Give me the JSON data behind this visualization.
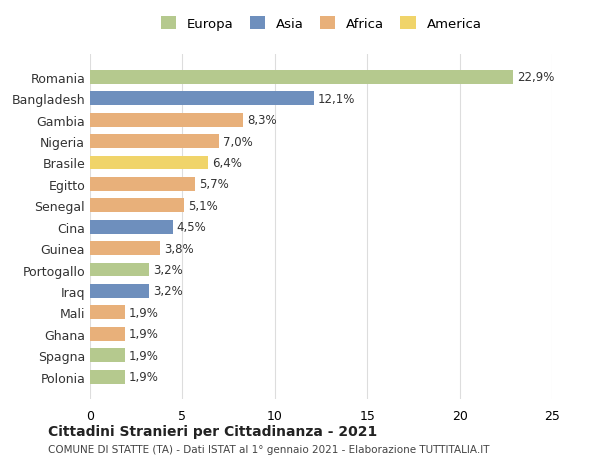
{
  "countries": [
    "Romania",
    "Bangladesh",
    "Gambia",
    "Nigeria",
    "Brasile",
    "Egitto",
    "Senegal",
    "Cina",
    "Guinea",
    "Portogallo",
    "Iraq",
    "Mali",
    "Ghana",
    "Spagna",
    "Polonia"
  ],
  "values": [
    22.9,
    12.1,
    8.3,
    7.0,
    6.4,
    5.7,
    5.1,
    4.5,
    3.8,
    3.2,
    3.2,
    1.9,
    1.9,
    1.9,
    1.9
  ],
  "labels": [
    "22,9%",
    "12,1%",
    "8,3%",
    "7,0%",
    "6,4%",
    "5,7%",
    "5,1%",
    "4,5%",
    "3,8%",
    "3,2%",
    "3,2%",
    "1,9%",
    "1,9%",
    "1,9%",
    "1,9%"
  ],
  "continents": [
    "Europa",
    "Asia",
    "Africa",
    "Africa",
    "America",
    "Africa",
    "Africa",
    "Asia",
    "Africa",
    "Europa",
    "Asia",
    "Africa",
    "Africa",
    "Europa",
    "Europa"
  ],
  "colors": {
    "Europa": "#b5c98e",
    "Asia": "#6e8fbd",
    "Africa": "#e8b07a",
    "America": "#f0d46a"
  },
  "title": "Cittadini Stranieri per Cittadinanza - 2021",
  "subtitle": "COMUNE DI STATTE (TA) - Dati ISTAT al 1° gennaio 2021 - Elaborazione TUTTITALIA.IT",
  "xlim": [
    0,
    25
  ],
  "xticks": [
    0,
    5,
    10,
    15,
    20,
    25
  ],
  "background_color": "#ffffff",
  "grid_color": "#dddddd",
  "legend_order": [
    "Europa",
    "Asia",
    "Africa",
    "America"
  ]
}
